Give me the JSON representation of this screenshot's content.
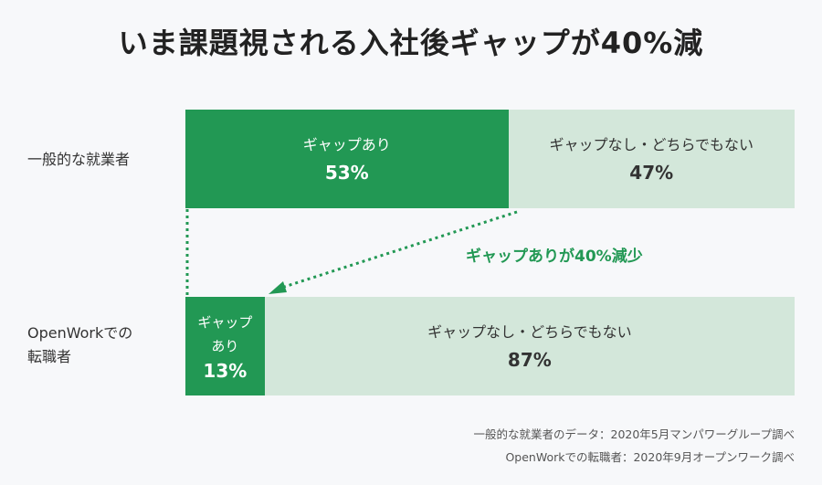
{
  "title": "いま課題視される入社後ギャップが40%減",
  "colors": {
    "gap": "#229854",
    "no_gap": "#d3e7da",
    "background": "#f7f8fa"
  },
  "chart_data": {
    "type": "bar",
    "orientation": "horizontal-stacked-100",
    "title": "いま課題視される入社後ギャップが40%減",
    "categories": [
      "一般的な就業者",
      "OpenWorkでの転職者"
    ],
    "category_lines": [
      [
        "一般的な就業者"
      ],
      [
        "OpenWorkでの",
        "転職者"
      ]
    ],
    "series": [
      {
        "name": "ギャップあり",
        "values": [
          53,
          13
        ],
        "labels": [
          "ギャップあり",
          "ギャップ\nあり"
        ],
        "value_labels": [
          "53%",
          "13%"
        ]
      },
      {
        "name": "ギャップなし・どちらでもない",
        "values": [
          47,
          87
        ],
        "labels": [
          "ギャップなし・どちらでもない",
          "ギャップなし・どちらでもない"
        ],
        "value_labels": [
          "47%",
          "87%"
        ]
      }
    ],
    "annotation": "ギャップありが40%減少",
    "xlim": [
      0,
      100
    ]
  },
  "sources": [
    "一般的な就業者のデータ：2020年5月マンパワーグループ調べ",
    "OpenWorkでの転職者：2020年9月オープンワーク調べ"
  ]
}
